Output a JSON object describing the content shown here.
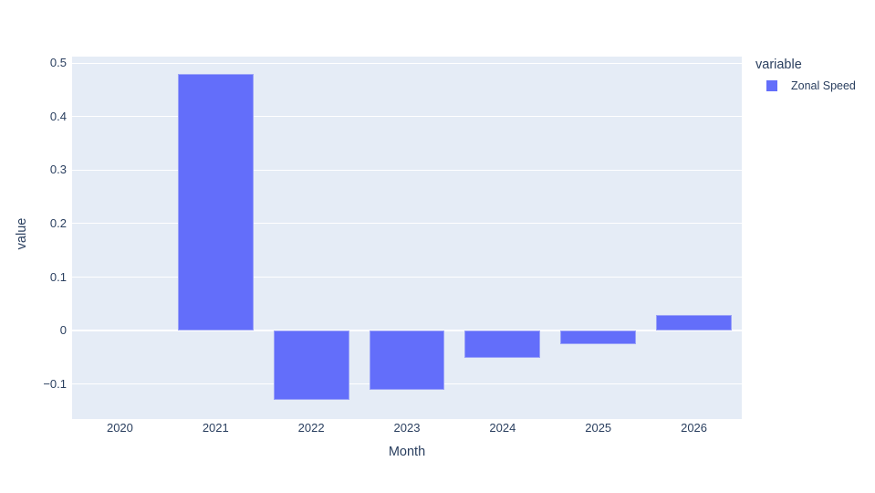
{
  "figure": {
    "background_color": "#ffffff",
    "plot_background_color": "#E5ECF6",
    "grid_color": "#ffffff",
    "text_color": "#2a3f5f",
    "bar_color": "#636EFA"
  },
  "chart_data": {
    "type": "bar",
    "title": "",
    "xlabel": "Month",
    "ylabel": "value",
    "categories": [
      "2020",
      "2021",
      "2022",
      "2023",
      "2024",
      "2025",
      "2026"
    ],
    "series": [
      {
        "name": "Zonal Speed",
        "color": "#636EFA",
        "values": [
          0,
          0.48,
          -0.13,
          -0.11,
          -0.05,
          -0.025,
          0.03
        ]
      }
    ],
    "ylim": [
      -0.165,
      0.512
    ],
    "yticks": {
      "values": [
        0.5,
        0.4,
        0.3,
        0.2,
        0.1,
        0,
        -0.1
      ],
      "labels": [
        "0.5",
        "0.4",
        "0.3",
        "0.2",
        "0.1",
        "0",
        "−0.1"
      ]
    },
    "grid": "horizontal",
    "zeroline": true,
    "bar_fraction_of_slot": 0.79,
    "legend": {
      "position": "right-top",
      "title": "variable",
      "items": [
        {
          "label": "Zonal Speed",
          "color": "#636EFA"
        }
      ]
    }
  }
}
